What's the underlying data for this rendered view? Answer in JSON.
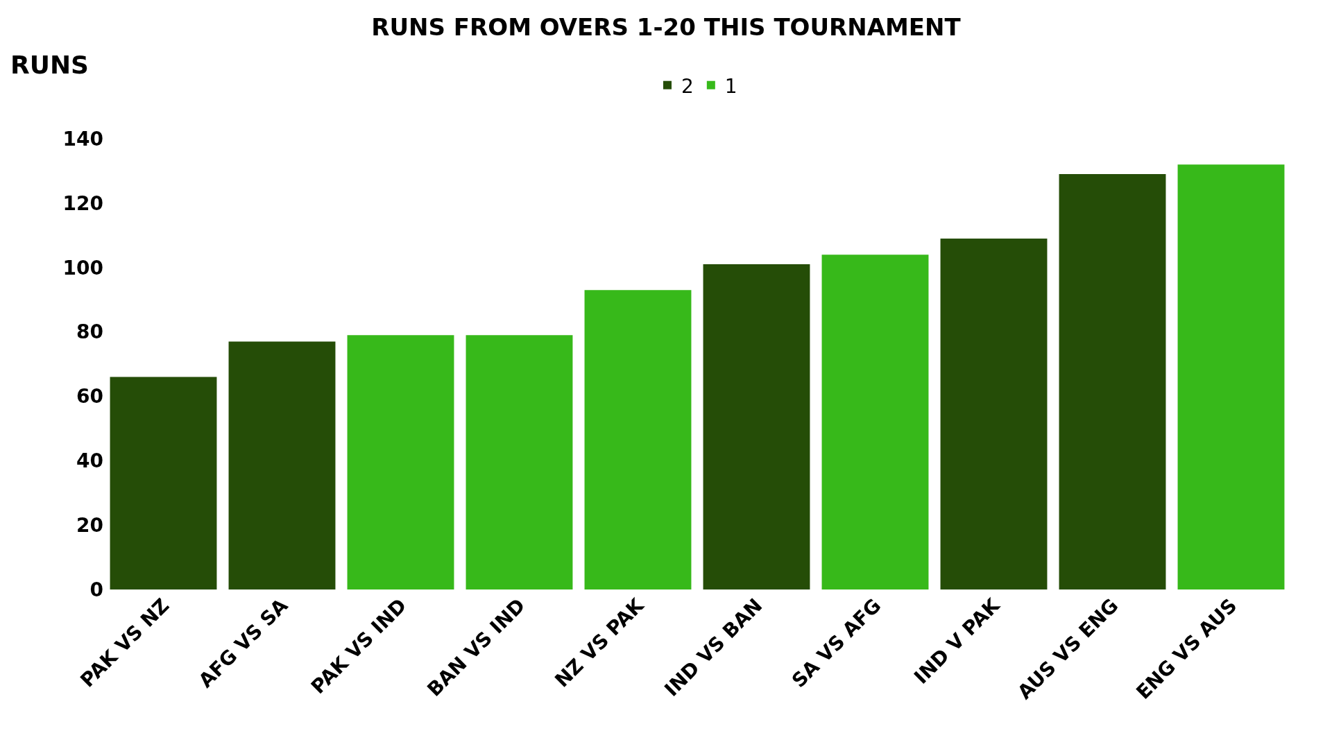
{
  "chart_data": {
    "type": "bar",
    "title": "RUNS FROM OVERS 1-20 THIS TOURNAMENT",
    "ylabel": "RUNS",
    "categories": [
      "PAK VS NZ",
      "AFG VS SA",
      "PAK VS IND",
      "BAN VS IND",
      "NZ VS PAK",
      "IND VS BAN",
      "SA VS AFG",
      "IND V PAK",
      "AUS VS ENG",
      "ENG VS AUS"
    ],
    "series": [
      {
        "name": "2",
        "color": "#254d07",
        "values": [
          66,
          77,
          null,
          null,
          null,
          101,
          null,
          109,
          129,
          null
        ]
      },
      {
        "name": "1",
        "color": "#37b91a",
        "values": [
          null,
          null,
          79,
          79,
          93,
          null,
          104,
          null,
          null,
          132
        ]
      }
    ],
    "ylim": [
      0,
      140
    ],
    "yticks": [
      0,
      20,
      40,
      60,
      80,
      100,
      120,
      140
    ],
    "legend": "top"
  }
}
